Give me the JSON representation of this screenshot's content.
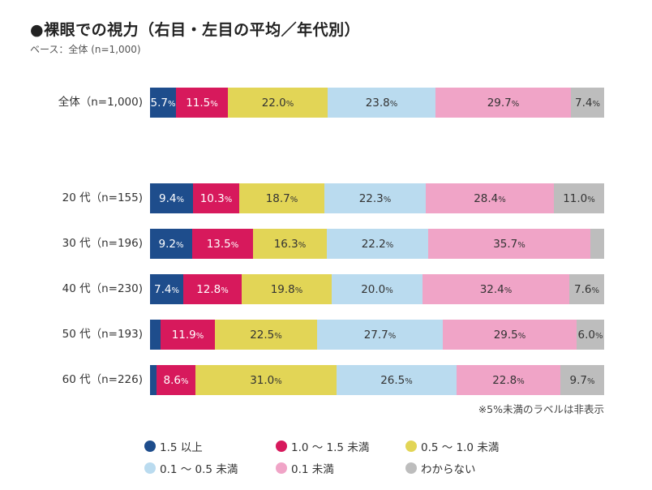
{
  "chart_data": {
    "type": "bar",
    "orientation": "horizontal-stacked-100",
    "title": "●裸眼での視力（右目・左目の平均／年代別）",
    "subtitle": "ベース：全体 (n=1,000)",
    "footnote": "※5%未満のラベルは非表示",
    "xlim": [
      0,
      100
    ],
    "unit": "%",
    "legend_position": "bottom",
    "categories": [
      "全体（n=1,000)",
      "20 代（n=155)",
      "30 代（n=196)",
      "40 代（n=230)",
      "50 代（n=193)",
      "60 代（n=226)"
    ],
    "series": [
      {
        "name": "1.5 以上",
        "color": "#1e4d8c",
        "text_color": "#ffffff",
        "values": [
          5.7,
          9.4,
          9.2,
          7.4,
          2.4,
          1.4
        ]
      },
      {
        "name": "1.0 ～ 1.5 未満",
        "color": "#d7195c",
        "text_color": "#ffffff",
        "values": [
          11.5,
          10.3,
          13.5,
          12.8,
          11.9,
          8.6
        ]
      },
      {
        "name": "0.5 ～ 1.0 未満",
        "color": "#e2d556",
        "text_color": "#333333",
        "values": [
          22.0,
          18.7,
          16.3,
          19.8,
          22.5,
          31.0
        ]
      },
      {
        "name": "0.1 ～ 0.5 未満",
        "color": "#badbef",
        "text_color": "#333333",
        "values": [
          23.8,
          22.3,
          22.2,
          20.0,
          27.7,
          26.5
        ]
      },
      {
        "name": "0.1 未満",
        "color": "#f0a4c7",
        "text_color": "#333333",
        "values": [
          29.7,
          28.4,
          35.7,
          32.4,
          29.5,
          22.8
        ]
      },
      {
        "name": "わからない",
        "color": "#bdbdbd",
        "text_color": "#333333",
        "values": [
          7.4,
          11.0,
          3.1,
          7.6,
          6.0,
          9.7
        ]
      }
    ],
    "label_min": 5
  }
}
